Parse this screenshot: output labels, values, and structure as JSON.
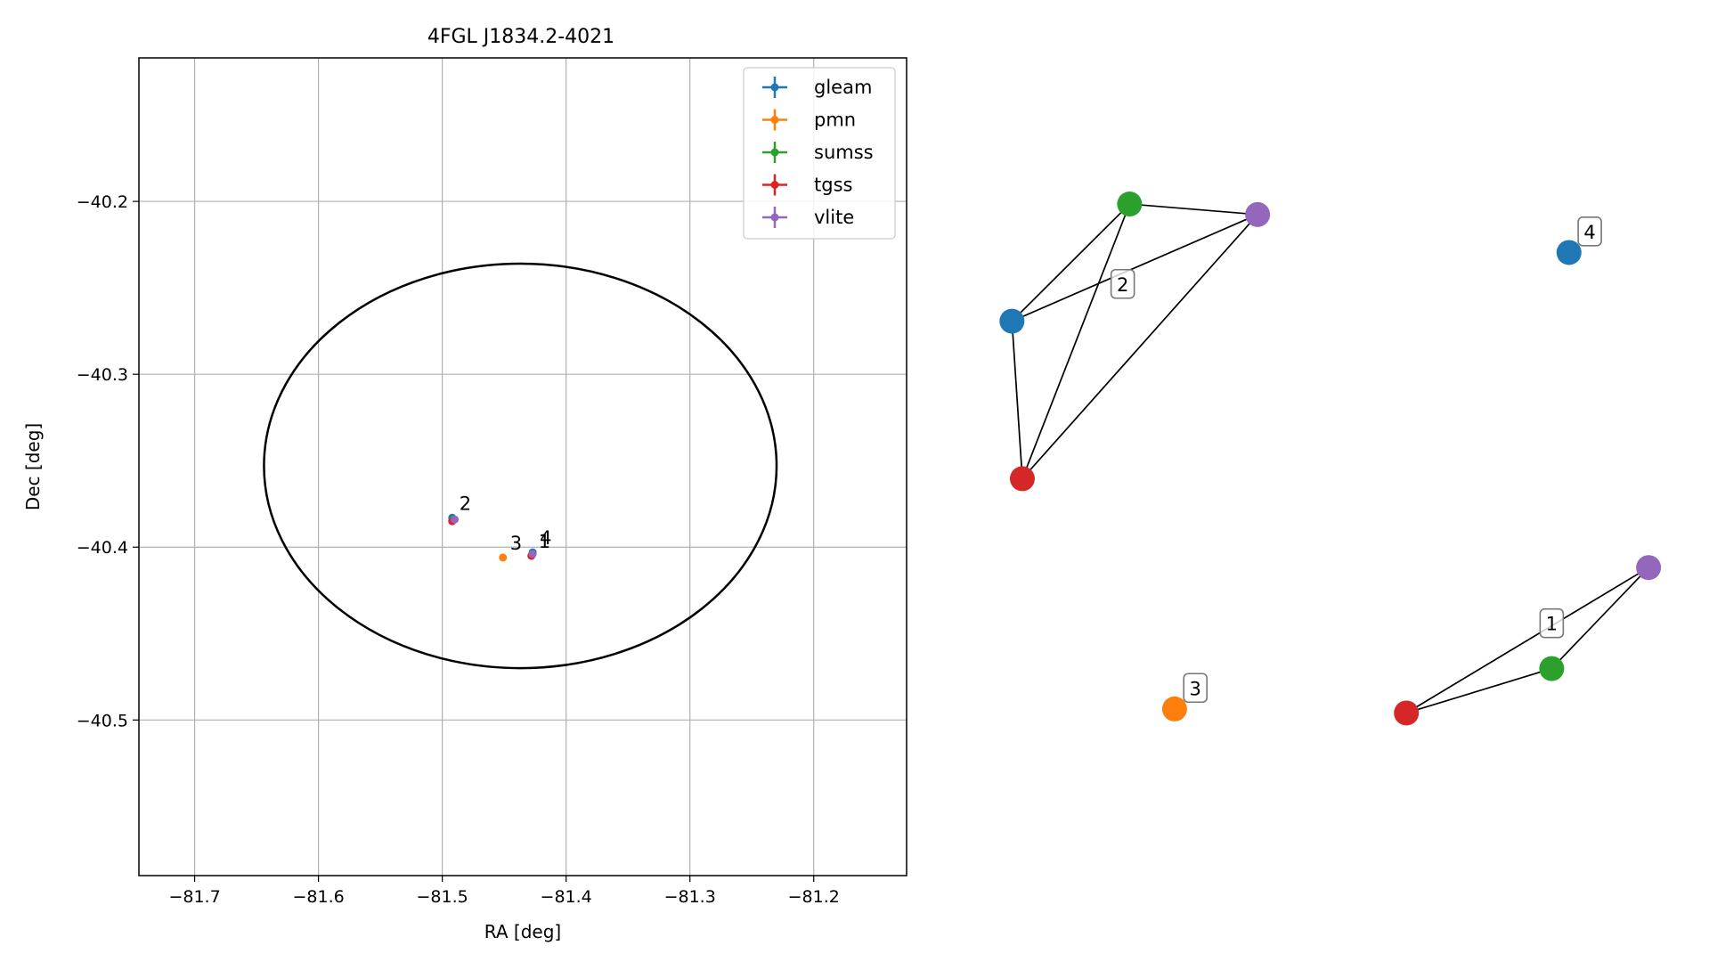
{
  "chart_data": [
    {
      "type": "scatter",
      "title": "4FGL J1834.2-4021",
      "xlabel": "RA [deg]",
      "ylabel": "Dec [deg]",
      "xlim": [
        -81.745,
        -81.125
      ],
      "ylim": [
        -40.59,
        -40.117
      ],
      "xticks": [
        -81.7,
        -81.6,
        -81.5,
        -81.4,
        -81.3,
        -81.2
      ],
      "xtick_labels": [
        "−81.7",
        "−81.6",
        "−81.5",
        "−81.4",
        "−81.3",
        "−81.2"
      ],
      "yticks": [
        -40.2,
        -40.3,
        -40.4,
        -40.5
      ],
      "ytick_labels": [
        "−40.2",
        "−40.3",
        "−40.4",
        "−40.5"
      ],
      "grid": true,
      "legend_position": "top-right",
      "series": [
        {
          "name": "gleam",
          "color": "#1f77b4",
          "points": [
            {
              "x": -81.492,
              "y": -40.383
            },
            {
              "x": -81.427,
              "y": -40.403
            }
          ]
        },
        {
          "name": "pmn",
          "color": "#ff7f0e",
          "points": [
            {
              "x": -81.451,
              "y": -40.406
            }
          ]
        },
        {
          "name": "sumss",
          "color": "#2ca02c",
          "points": [
            {
              "x": -81.491,
              "y": -40.384
            },
            {
              "x": -81.428,
              "y": -40.405
            }
          ]
        },
        {
          "name": "tgss",
          "color": "#d62728",
          "points": [
            {
              "x": -81.492,
              "y": -40.385
            },
            {
              "x": -81.428,
              "y": -40.405
            }
          ]
        },
        {
          "name": "vlite",
          "color": "#9467bd",
          "points": [
            {
              "x": -81.49,
              "y": -40.384
            },
            {
              "x": -81.427,
              "y": -40.404
            }
          ]
        }
      ],
      "ellipse": {
        "center": [
          -81.437,
          -40.353
        ],
        "ra_radius": 0.207,
        "dec_radius": 0.117
      },
      "annotations": [
        {
          "text": "2",
          "x": -81.492,
          "y": -40.383
        },
        {
          "text": "3",
          "x": -81.451,
          "y": -40.406
        },
        {
          "text": "4",
          "x": -81.427,
          "y": -40.403
        },
        {
          "text": "1",
          "x": -81.428,
          "y": -40.405
        }
      ]
    },
    {
      "type": "network",
      "groups": [
        {
          "label": "2",
          "nodes": [
            {
              "id": "gleam",
              "color": "#1f77b4",
              "x": 0.03,
              "y": 0.705
            },
            {
              "id": "sumss",
              "color": "#2ca02c",
              "x": 0.2,
              "y": 0.85
            },
            {
              "id": "vlite",
              "color": "#9467bd",
              "x": 0.385,
              "y": 0.837
            },
            {
              "id": "tgss",
              "color": "#d62728",
              "x": 0.045,
              "y": 0.51
            }
          ],
          "edges": [
            [
              "gleam",
              "sumss"
            ],
            [
              "gleam",
              "vlite"
            ],
            [
              "gleam",
              "tgss"
            ],
            [
              "sumss",
              "vlite"
            ],
            [
              "sumss",
              "tgss"
            ],
            [
              "vlite",
              "tgss"
            ]
          ],
          "label_pos": {
            "x": 0.19,
            "y": 0.75
          }
        },
        {
          "label": "4",
          "nodes": [
            {
              "id": "gleam",
              "color": "#1f77b4",
              "x": 0.835,
              "y": 0.79
            }
          ],
          "edges": [],
          "label_pos": {
            "x": 0.865,
            "y": 0.815
          }
        },
        {
          "label": "1",
          "nodes": [
            {
              "id": "vlite",
              "color": "#9467bd",
              "x": 0.95,
              "y": 0.4
            },
            {
              "id": "sumss",
              "color": "#2ca02c",
              "x": 0.81,
              "y": 0.275
            },
            {
              "id": "tgss",
              "color": "#d62728",
              "x": 0.6,
              "y": 0.22
            }
          ],
          "edges": [
            [
              "vlite",
              "sumss"
            ],
            [
              "vlite",
              "tgss"
            ],
            [
              "sumss",
              "tgss"
            ]
          ],
          "label_pos": {
            "x": 0.81,
            "y": 0.33
          }
        },
        {
          "label": "3",
          "nodes": [
            {
              "id": "pmn",
              "color": "#ff7f0e",
              "x": 0.265,
              "y": 0.225
            }
          ],
          "edges": [],
          "label_pos": {
            "x": 0.295,
            "y": 0.25
          }
        }
      ]
    }
  ]
}
